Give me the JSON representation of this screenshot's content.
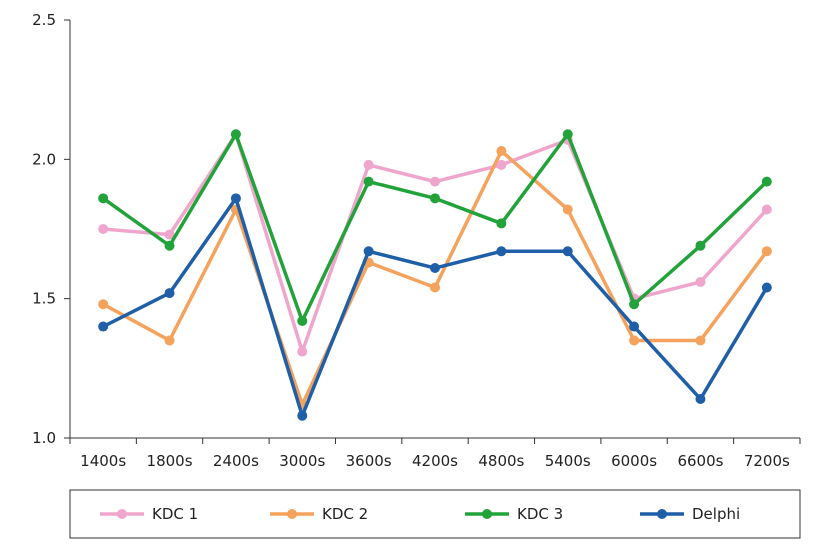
{
  "chart_data": {
    "type": "line",
    "title": "",
    "xlabel": "",
    "ylabel": "",
    "categories": [
      "1400s",
      "1800s",
      "2400s",
      "3000s",
      "3600s",
      "4200s",
      "4800s",
      "5400s",
      "6000s",
      "6600s",
      "7200s"
    ],
    "ylim": [
      1.0,
      2.5
    ],
    "yticks": [
      "1.0",
      "1.5",
      "2.0",
      "2.5"
    ],
    "legend_position": "bottom",
    "grid": false,
    "series": [
      {
        "name": "KDC 1",
        "color": "#f0a6cc",
        "values": [
          1.75,
          1.73,
          2.09,
          1.31,
          1.98,
          1.92,
          1.98,
          2.07,
          1.5,
          1.56,
          1.82
        ]
      },
      {
        "name": "KDC 2",
        "color": "#f5a25d",
        "values": [
          1.48,
          1.35,
          1.82,
          1.12,
          1.63,
          1.54,
          2.03,
          1.82,
          1.35,
          1.35,
          1.67
        ]
      },
      {
        "name": "KDC 3",
        "color": "#22a33a",
        "values": [
          1.86,
          1.69,
          2.09,
          1.42,
          1.92,
          1.86,
          1.77,
          2.09,
          1.48,
          1.69,
          1.92
        ]
      },
      {
        "name": "Delphi",
        "color": "#1e5fa8",
        "values": [
          1.4,
          1.52,
          1.86,
          1.08,
          1.67,
          1.61,
          1.67,
          1.67,
          1.4,
          1.14,
          1.54
        ]
      }
    ]
  }
}
